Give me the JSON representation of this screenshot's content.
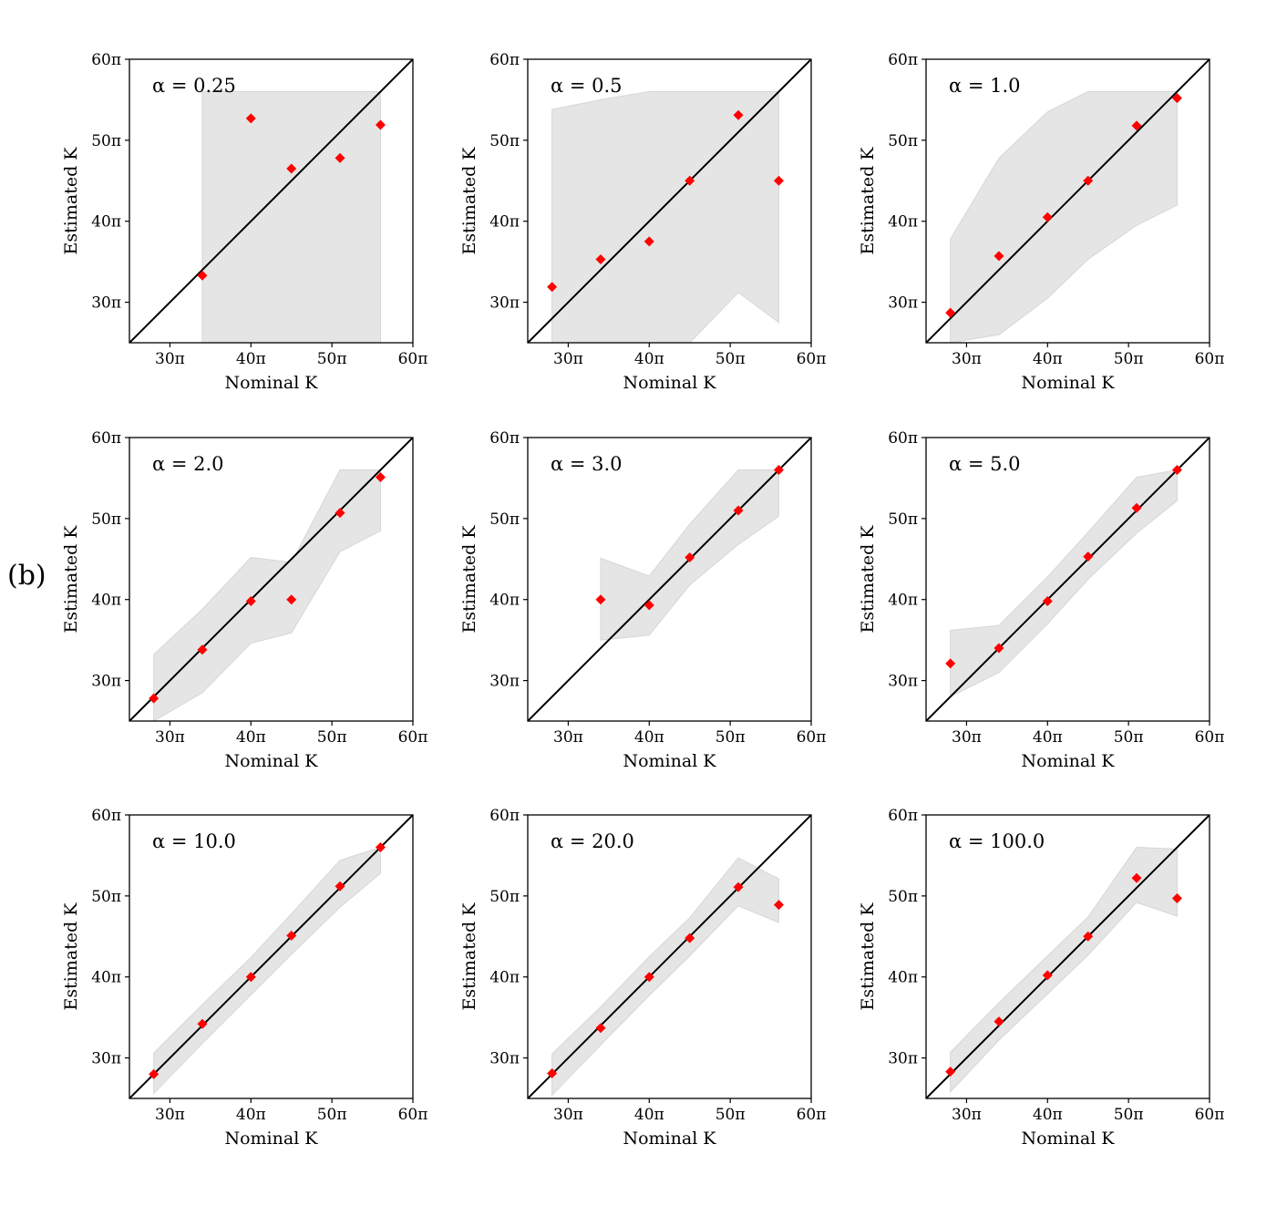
{
  "figure_label": "(b)",
  "colors": {
    "band": "#e5e5e5",
    "band_edge": "#d6d6d6",
    "marker": "#ff0000",
    "identity_line": "#000000",
    "axes": "#000000"
  },
  "chart_data": [
    {
      "type": "scatter",
      "title": "α = 0.25",
      "xlabel": "Nominal K",
      "ylabel": "Estimated K",
      "xlim": [
        25,
        60
      ],
      "ylim": [
        25,
        60
      ],
      "xticks": [
        30,
        40,
        50,
        60
      ],
      "xtick_labels": [
        "30π",
        "40π",
        "50π",
        "60π"
      ],
      "yticks": [
        30,
        40,
        50,
        60
      ],
      "ytick_labels": [
        "30π",
        "40π",
        "50π",
        "60π"
      ],
      "x": [
        34,
        40,
        45,
        51,
        56
      ],
      "y": [
        33.3,
        52.7,
        46.5,
        47.8,
        51.9
      ],
      "band": {
        "x": [
          34,
          56
        ],
        "lower": [
          25,
          25
        ],
        "upper": [
          56,
          56
        ]
      }
    },
    {
      "type": "scatter",
      "title": "α = 0.5",
      "xlabel": "Nominal K",
      "ylabel": "Estimated K",
      "xlim": [
        25,
        60
      ],
      "ylim": [
        25,
        60
      ],
      "xticks": [
        30,
        40,
        50,
        60
      ],
      "xtick_labels": [
        "30π",
        "40π",
        "50π",
        "60π"
      ],
      "yticks": [
        30,
        40,
        50,
        60
      ],
      "ytick_labels": [
        "30π",
        "40π",
        "50π",
        "60π"
      ],
      "x": [
        28,
        34,
        40,
        45,
        51,
        56
      ],
      "y": [
        31.9,
        35.3,
        37.5,
        45.0,
        53.1,
        45.0
      ],
      "band": {
        "x": [
          28,
          34,
          40,
          45,
          51,
          56
        ],
        "lower": [
          25,
          25,
          25,
          25,
          31.2,
          27.5
        ],
        "upper": [
          53.8,
          55.0,
          56.0,
          56.0,
          56.0,
          56.0
        ]
      }
    },
    {
      "type": "scatter",
      "title": "α = 1.0",
      "xlabel": "Nominal K",
      "ylabel": "Estimated K",
      "xlim": [
        25,
        60
      ],
      "ylim": [
        25,
        60
      ],
      "xticks": [
        30,
        40,
        50,
        60
      ],
      "xtick_labels": [
        "30π",
        "40π",
        "50π",
        "60π"
      ],
      "yticks": [
        30,
        40,
        50,
        60
      ],
      "ytick_labels": [
        "30π",
        "40π",
        "50π",
        "60π"
      ],
      "x": [
        28,
        34,
        40,
        45,
        51,
        56
      ],
      "y": [
        28.7,
        35.7,
        40.5,
        45.0,
        51.8,
        55.2
      ],
      "band": {
        "x": [
          28,
          34,
          40,
          45,
          51,
          56
        ],
        "lower": [
          25,
          26.0,
          30.5,
          35.3,
          39.5,
          42.0
        ],
        "upper": [
          37.8,
          47.8,
          53.5,
          56.0,
          56.0,
          56.0
        ]
      }
    },
    {
      "type": "scatter",
      "title": "α = 2.0",
      "xlabel": "Nominal K",
      "ylabel": "Estimated K",
      "xlim": [
        25,
        60
      ],
      "ylim": [
        25,
        60
      ],
      "xticks": [
        30,
        40,
        50,
        60
      ],
      "xtick_labels": [
        "30π",
        "40π",
        "50π",
        "60π"
      ],
      "yticks": [
        30,
        40,
        50,
        60
      ],
      "ytick_labels": [
        "30π",
        "40π",
        "50π",
        "60π"
      ],
      "x": [
        28,
        34,
        40,
        45,
        51,
        56
      ],
      "y": [
        27.8,
        33.8,
        39.8,
        40.0,
        50.7,
        55.1
      ],
      "band": {
        "x": [
          28,
          34,
          40,
          45,
          51,
          56
        ],
        "lower": [
          25,
          28.5,
          34.6,
          35.9,
          45.9,
          48.5
        ],
        "upper": [
          33.2,
          38.8,
          45.2,
          44.6,
          56.0,
          56.0
        ]
      }
    },
    {
      "type": "scatter",
      "title": "α = 3.0",
      "xlabel": "Nominal K",
      "ylabel": "Estimated K",
      "xlim": [
        25,
        60
      ],
      "ylim": [
        25,
        60
      ],
      "xticks": [
        30,
        40,
        50,
        60
      ],
      "xtick_labels": [
        "30π",
        "40π",
        "50π",
        "60π"
      ],
      "yticks": [
        30,
        40,
        50,
        60
      ],
      "ytick_labels": [
        "30π",
        "40π",
        "50π",
        "60π"
      ],
      "x": [
        34,
        40,
        45,
        51,
        56
      ],
      "y": [
        40.0,
        39.3,
        45.2,
        51.0,
        56.0
      ],
      "band": {
        "x": [
          34,
          40,
          45,
          51,
          56
        ],
        "lower": [
          35.0,
          35.6,
          41.8,
          46.8,
          50.3
        ],
        "upper": [
          45.1,
          42.9,
          49.3,
          56.0,
          56.0
        ]
      }
    },
    {
      "type": "scatter",
      "title": "α = 5.0",
      "xlabel": "Nominal K",
      "ylabel": "Estimated K",
      "xlim": [
        25,
        60
      ],
      "ylim": [
        25,
        60
      ],
      "xticks": [
        30,
        40,
        50,
        60
      ],
      "xtick_labels": [
        "30π",
        "40π",
        "50π",
        "60π"
      ],
      "yticks": [
        30,
        40,
        50,
        60
      ],
      "ytick_labels": [
        "30π",
        "40π",
        "50π",
        "60π"
      ],
      "x": [
        28,
        34,
        40,
        45,
        51,
        56
      ],
      "y": [
        32.1,
        34.0,
        39.8,
        45.3,
        51.3,
        56.0
      ],
      "band": {
        "x": [
          28,
          34,
          40,
          45,
          51,
          56
        ],
        "lower": [
          28.0,
          31.0,
          37.0,
          42.5,
          48.2,
          52.2
        ],
        "upper": [
          36.2,
          36.8,
          42.8,
          48.3,
          55.1,
          56.0
        ]
      }
    },
    {
      "type": "scatter",
      "title": "α = 10.0",
      "xlabel": "Nominal K",
      "ylabel": "Estimated K",
      "xlim": [
        25,
        60
      ],
      "ylim": [
        25,
        60
      ],
      "xticks": [
        30,
        40,
        50,
        60
      ],
      "xtick_labels": [
        "30π",
        "40π",
        "50π",
        "60π"
      ],
      "yticks": [
        30,
        40,
        50,
        60
      ],
      "ytick_labels": [
        "30π",
        "40π",
        "50π",
        "60π"
      ],
      "x": [
        28,
        34,
        40,
        45,
        51,
        56
      ],
      "y": [
        28.0,
        34.2,
        40.0,
        45.1,
        51.2,
        56.0
      ],
      "band": {
        "x": [
          28,
          34,
          40,
          45,
          51,
          56
        ],
        "lower": [
          25.6,
          31.8,
          37.8,
          42.8,
          48.6,
          52.8
        ],
        "upper": [
          30.6,
          36.6,
          42.4,
          47.8,
          54.4,
          56.0
        ]
      }
    },
    {
      "type": "scatter",
      "title": "α = 20.0",
      "xlabel": "Nominal K",
      "ylabel": "Estimated K",
      "xlim": [
        25,
        60
      ],
      "ylim": [
        25,
        60
      ],
      "xticks": [
        30,
        40,
        50,
        60
      ],
      "xtick_labels": [
        "30π",
        "40π",
        "50π",
        "60π"
      ],
      "yticks": [
        30,
        40,
        50,
        60
      ],
      "ytick_labels": [
        "30π",
        "40π",
        "50π",
        "60π"
      ],
      "x": [
        28,
        34,
        40,
        45,
        51,
        56
      ],
      "y": [
        28.1,
        33.7,
        40.0,
        44.8,
        51.1,
        48.9
      ],
      "band": {
        "x": [
          28,
          34,
          40,
          45,
          51,
          56
        ],
        "lower": [
          25.4,
          31.6,
          37.7,
          42.6,
          48.8,
          46.7
        ],
        "upper": [
          30.5,
          36.3,
          42.5,
          47.3,
          54.7,
          52.1
        ]
      }
    },
    {
      "type": "scatter",
      "title": "α = 100.0",
      "xlabel": "Nominal K",
      "ylabel": "Estimated K",
      "xlim": [
        25,
        60
      ],
      "ylim": [
        25,
        60
      ],
      "xticks": [
        30,
        40,
        50,
        60
      ],
      "xtick_labels": [
        "30π",
        "40π",
        "50π",
        "60π"
      ],
      "yticks": [
        30,
        40,
        50,
        60
      ],
      "ytick_labels": [
        "30π",
        "40π",
        "50π",
        "60π"
      ],
      "x": [
        28,
        34,
        40,
        45,
        51,
        56
      ],
      "y": [
        28.3,
        34.5,
        40.2,
        45.0,
        52.2,
        49.7
      ],
      "band": {
        "x": [
          28,
          34,
          40,
          45,
          51,
          56
        ],
        "lower": [
          25.8,
          32.2,
          37.9,
          42.7,
          49.2,
          47.5
        ],
        "upper": [
          30.7,
          36.8,
          42.6,
          47.4,
          56.0,
          55.8
        ]
      }
    }
  ]
}
